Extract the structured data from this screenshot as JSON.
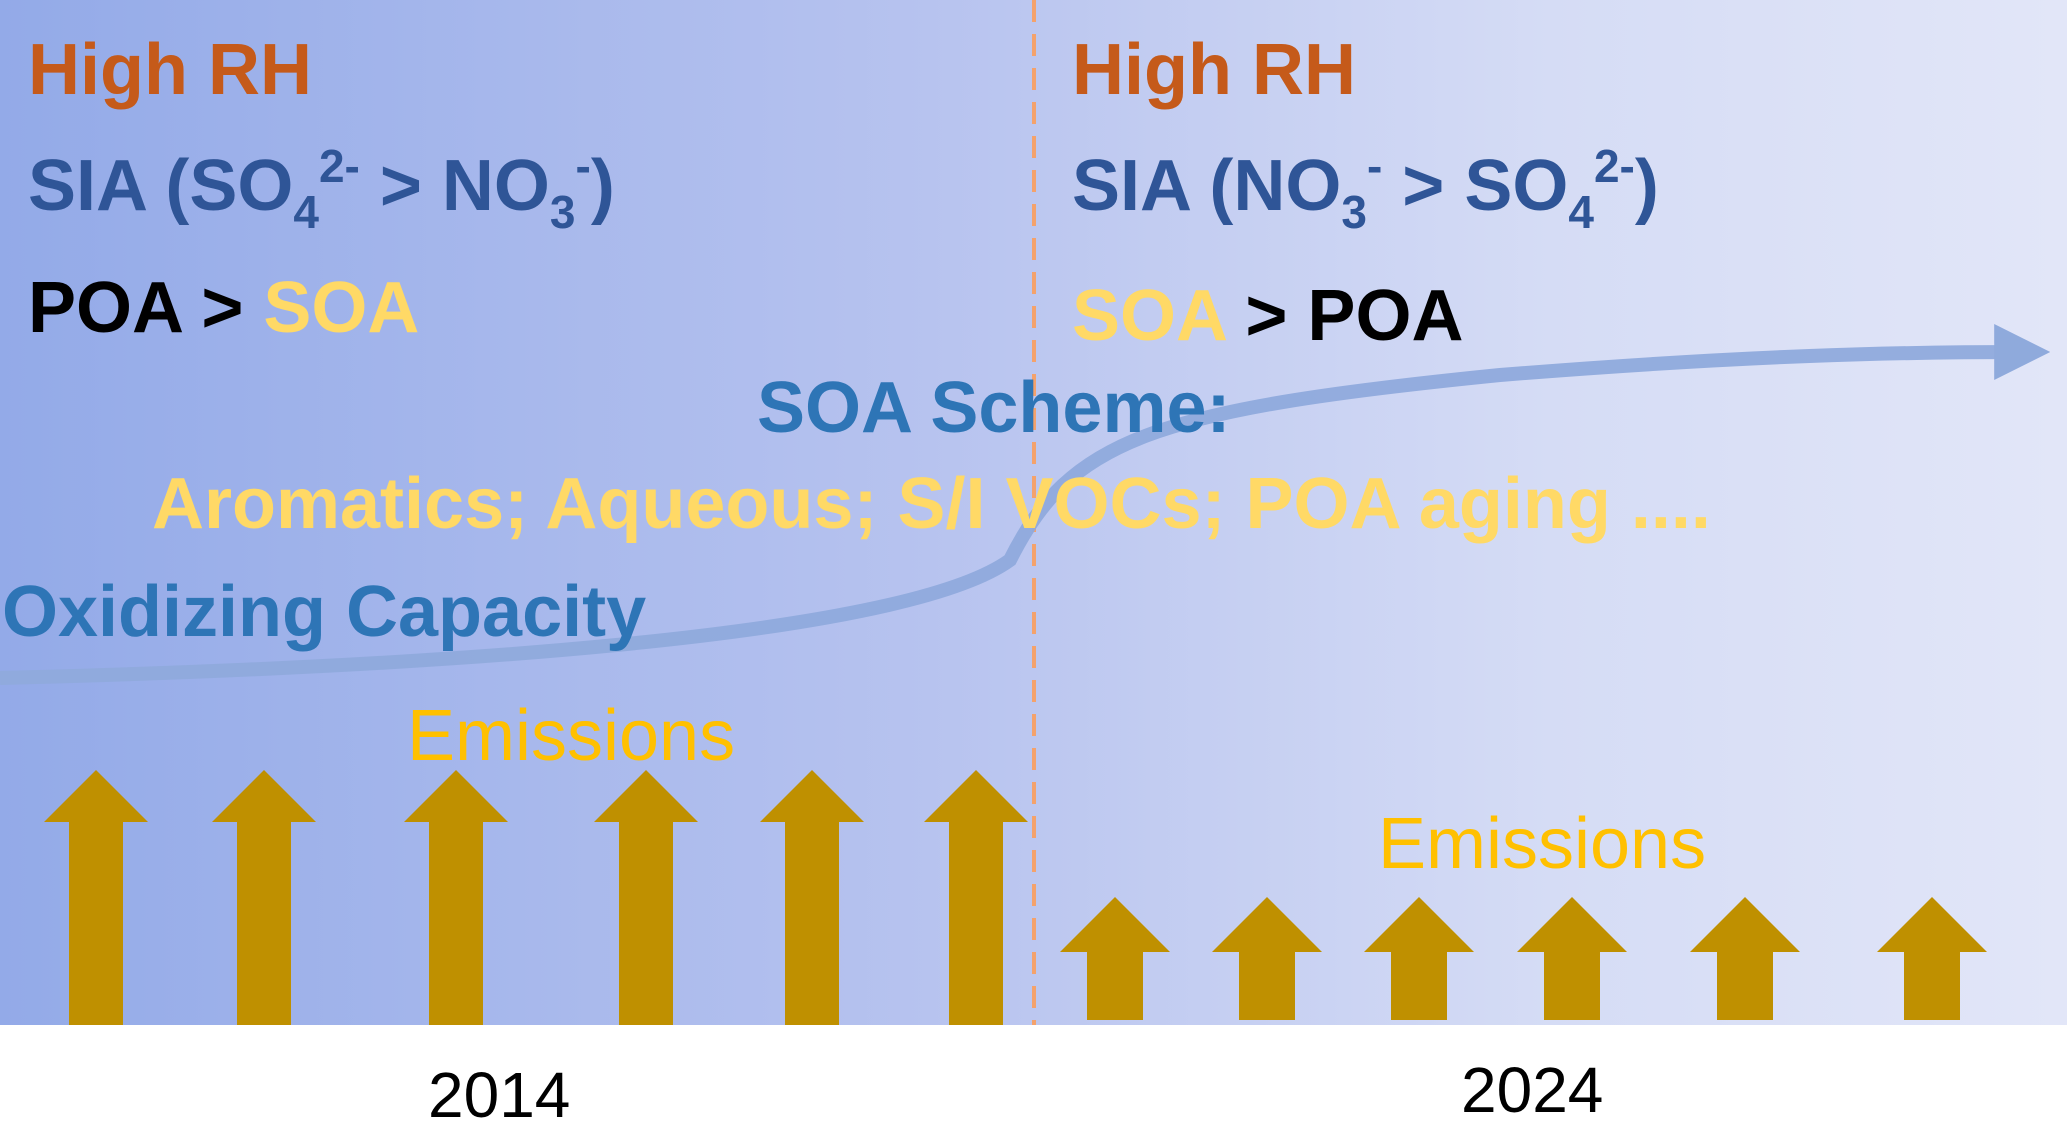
{
  "left": {
    "rh": "High RH",
    "sia": {
      "prefix": "SIA (SO",
      "sub1": "4",
      "sup1": "2-",
      "mid": " > NO",
      "sub2": "3",
      "sup2": "-",
      "suffix": ")"
    },
    "poa_soa": {
      "first": "POA > ",
      "second": "SOA"
    },
    "emissions": "Emissions",
    "year": "2014"
  },
  "right": {
    "rh": "High RH",
    "sia": {
      "prefix": "SIA (NO",
      "sub1": "3",
      "sup1": "-",
      "mid": " > SO",
      "sub2": "4",
      "sup2": "2-",
      "suffix": ")"
    },
    "soa_poa": {
      "first": "SOA",
      "second": " > POA"
    },
    "emissions": "Emissions",
    "year": "2024"
  },
  "scheme": {
    "title": "SOA Scheme:",
    "mechanisms": "Aromatics; Aqueous; S/I VOCs; POA aging ...."
  },
  "oxidizing_capacity": "Oxidizing Capacity",
  "colors": {
    "high_rh": "#c55a1a",
    "sia": "#2f5597",
    "soa": "#ffd966",
    "scheme": "#2e75b6",
    "emissions_text": "#ffc000",
    "emission_arrow": "#bf9000",
    "divider": "#f4a26c",
    "curve": "#8faadc"
  },
  "emission_arrows": {
    "2014_count": 6,
    "2024_count": 6
  }
}
